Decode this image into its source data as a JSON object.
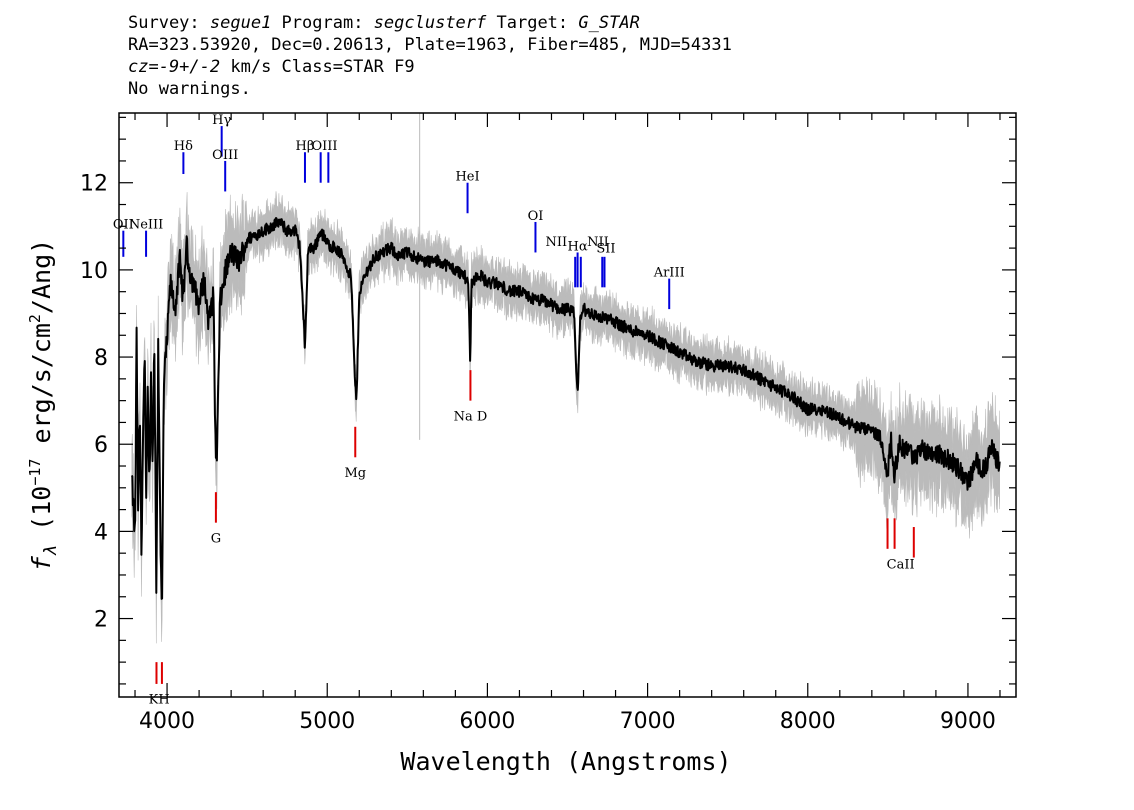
{
  "header": {
    "line1": {
      "survey_label": "Survey: ",
      "survey": "segue1",
      "program_label": " Program: ",
      "program": "segclusterf",
      "target_label": " Target: ",
      "target": "G_STAR"
    },
    "line2": "RA=323.53920, Dec=0.20613, Plate=1963, Fiber=485, MJD=54331",
    "line3": {
      "cz": "cz=-9+/-2",
      "rest": " km/s Class=STAR F9"
    },
    "line4": "No warnings."
  },
  "chart_data": {
    "type": "line",
    "xlabel": "Wavelength (Angstroms)",
    "ylabel": "f_λ (10^-17 erg/s/cm²/Ang)",
    "ylabel_parts": {
      "f": "f",
      "lambda": "λ",
      "pre": " (10",
      "exp": "−17",
      "mid": " erg/s/cm",
      "exp2": "2",
      "post": "/Ang)"
    },
    "xlim": [
      3700,
      9300
    ],
    "ylim": [
      0.2,
      13.6
    ],
    "xticks": [
      4000,
      5000,
      6000,
      7000,
      8000,
      9000
    ],
    "yticks": [
      2,
      4,
      6,
      8,
      10,
      12
    ],
    "spectrum_color": "#000000",
    "noise_color": "#bbbbbb",
    "series": [
      {
        "x": [
          3780,
          3800,
          3810,
          3820,
          3830,
          3840,
          3850,
          3860,
          3870,
          3880,
          3890,
          3900,
          3910,
          3920,
          3933,
          3945,
          3960,
          3968,
          3980,
          4000,
          4020,
          4050,
          4080,
          4101,
          4120,
          4140,
          4170,
          4200,
          4230,
          4260,
          4290,
          4300,
          4310,
          4330,
          4360,
          4400,
          4450,
          4500,
          4550,
          4600,
          4650,
          4700,
          4750,
          4800,
          4830,
          4861,
          4880,
          4920,
          4960,
          5000,
          5050,
          5100,
          5150,
          5172,
          5183,
          5200,
          5250,
          5300,
          5350,
          5400,
          5450,
          5500,
          5550,
          5600,
          5650,
          5700,
          5750,
          5800,
          5850,
          5880,
          5893,
          5900,
          5920,
          5950,
          6000,
          6050,
          6100,
          6150,
          6200,
          6250,
          6300,
          6350,
          6400,
          6450,
          6500,
          6540,
          6563,
          6580,
          6600,
          6650,
          6700,
          6750,
          6800,
          6850,
          6900,
          6950,
          7000,
          7100,
          7200,
          7300,
          7400,
          7500,
          7600,
          7700,
          7800,
          7900,
          8000,
          8100,
          8200,
          8300,
          8400,
          8450,
          8498,
          8520,
          8542,
          8570,
          8600,
          8640,
          8662,
          8700,
          8800,
          8900,
          8950,
          9000,
          9050,
          9100,
          9150,
          9200
        ],
        "y": [
          5.2,
          3.8,
          8.5,
          4.2,
          6.8,
          3.6,
          6.2,
          8.0,
          4.6,
          7.4,
          5.0,
          7.6,
          5.4,
          8.6,
          2.6,
          8.3,
          3.6,
          1.9,
          7.4,
          8.4,
          9.7,
          9.1,
          10.2,
          9.3,
          10.6,
          10.0,
          9.6,
          9.2,
          9.8,
          8.8,
          9.4,
          6.5,
          5.4,
          9.2,
          9.9,
          10.4,
          10.2,
          10.7,
          10.8,
          10.9,
          11.0,
          11.1,
          10.9,
          10.9,
          10.5,
          8.2,
          10.5,
          10.5,
          10.9,
          10.6,
          10.5,
          10.3,
          9.8,
          7.5,
          7.0,
          9.5,
          10.0,
          10.3,
          10.4,
          10.5,
          10.3,
          10.4,
          10.3,
          10.2,
          10.2,
          10.2,
          10.1,
          10.0,
          9.9,
          9.7,
          7.9,
          9.7,
          9.8,
          9.9,
          9.7,
          9.7,
          9.6,
          9.5,
          9.5,
          9.4,
          9.3,
          9.3,
          9.2,
          9.1,
          9.1,
          9.0,
          7.1,
          8.9,
          9.1,
          9.0,
          8.9,
          8.9,
          8.8,
          8.7,
          8.6,
          8.6,
          8.5,
          8.3,
          8.1,
          7.9,
          7.8,
          7.8,
          7.7,
          7.5,
          7.3,
          7.1,
          6.8,
          6.8,
          6.6,
          6.4,
          6.3,
          6.2,
          5.3,
          6.1,
          5.3,
          6.0,
          5.9,
          5.9,
          5.6,
          5.9,
          5.8,
          5.6,
          5.4,
          5.1,
          5.6,
          5.4,
          5.9,
          5.5
        ]
      }
    ],
    "lines": [
      {
        "label": "OII",
        "lambda": 3727,
        "color": "blue",
        "side": "up",
        "mark_top": 10.9,
        "mark_bottom": 10.3
      },
      {
        "label": "NeIII",
        "lambda": 3869,
        "color": "blue",
        "side": "up",
        "mark_top": 10.9,
        "mark_bottom": 10.3
      },
      {
        "label": "Hδ",
        "lambda": 4102,
        "color": "blue",
        "side": "up",
        "mark_top": 12.7,
        "mark_bottom": 12.2
      },
      {
        "label": "Hγ",
        "lambda": 4341,
        "color": "blue",
        "side": "up",
        "mark_top": 13.3,
        "mark_bottom": 12.6
      },
      {
        "label": "OIII",
        "lambda": 4363,
        "color": "blue",
        "side": "up",
        "mark_top": 12.5,
        "mark_bottom": 11.8
      },
      {
        "label": "Hβ",
        "lambda": 4861,
        "color": "blue",
        "side": "up",
        "mark_top": 12.7,
        "mark_bottom": 12.0
      },
      {
        "label": "OIII",
        "lambda": 4959,
        "color": "blue",
        "side": "up",
        "mark_top": 12.7,
        "mark_bottom": 12.0
      },
      {
        "label": "OIII",
        "lambda": 5007,
        "color": "blue",
        "side": "up",
        "mark_top": 12.7,
        "mark_bottom": 12.0
      },
      {
        "label": "HeI",
        "lambda": 5876,
        "color": "blue",
        "side": "up",
        "mark_top": 12.0,
        "mark_bottom": 11.3
      },
      {
        "label": "OI",
        "lambda": 6300,
        "color": "blue",
        "side": "up",
        "mark_top": 11.1,
        "mark_bottom": 10.4
      },
      {
        "label": "NII",
        "lambda": 6548,
        "color": "blue",
        "side": "up",
        "mark_top": 10.3,
        "mark_bottom": 9.6
      },
      {
        "label": "Hα",
        "lambda": 6563,
        "color": "blue",
        "side": "up",
        "mark_top": 10.4,
        "mark_bottom": 9.6
      },
      {
        "label": "NII",
        "lambda": 6583,
        "color": "blue",
        "side": "up",
        "mark_top": 10.3,
        "mark_bottom": 9.6
      },
      {
        "label": "SII",
        "lambda": 6717,
        "color": "blue",
        "side": "up",
        "mark_top": 10.3,
        "mark_bottom": 9.6
      },
      {
        "label": "SII",
        "lambda": 6731,
        "color": "blue",
        "side": "up",
        "mark_top": 10.3,
        "mark_bottom": 9.6
      },
      {
        "label": "ArIII",
        "lambda": 7135,
        "color": "blue",
        "side": "up",
        "mark_top": 9.8,
        "mark_bottom": 9.1
      },
      {
        "label": "K",
        "lambda": 3934,
        "color": "red",
        "side": "down",
        "mark_top": 1.0,
        "mark_bottom": 0.5
      },
      {
        "label": "H",
        "lambda": 3968,
        "color": "red",
        "side": "down",
        "mark_top": 1.0,
        "mark_bottom": 0.5
      },
      {
        "label": "G",
        "lambda": 4305,
        "color": "red",
        "side": "down",
        "mark_top": 4.9,
        "mark_bottom": 4.2
      },
      {
        "label": "Mg",
        "lambda": 5175,
        "color": "red",
        "side": "down",
        "mark_top": 6.4,
        "mark_bottom": 5.7
      },
      {
        "label": "Na D",
        "lambda": 5894,
        "color": "red",
        "side": "down",
        "mark_top": 7.7,
        "mark_bottom": 7.0
      },
      {
        "label": "CaII",
        "lambda": 8498,
        "color": "red",
        "side": "down",
        "mark_top": 4.3,
        "mark_bottom": 3.6
      },
      {
        "label": "CaII",
        "lambda": 8542,
        "color": "red",
        "side": "down",
        "mark_top": 4.3,
        "mark_bottom": 3.6
      },
      {
        "label": "CaII",
        "lambda": 8662,
        "color": "red",
        "side": "down",
        "mark_top": 4.1,
        "mark_bottom": 3.4
      }
    ],
    "line_label_texts": {
      "OII": "OII",
      "NeIII": "NeIII",
      "Hδ": "Hδ",
      "Hγ": "Hγ",
      "OIII": "OIII",
      "Hβ": "Hβ",
      "HeI": "HeI",
      "OI": "OI",
      "NII": "NII",
      "Hα": "Hα",
      "SII": "SII",
      "ArIII": "ArIII",
      "KH": "KH",
      "G": "G",
      "Mg": "Mg",
      "Na D": "Na D",
      "CaII": "CaII"
    },
    "line_label_positions": [
      {
        "text": "OII",
        "lambda": 3727,
        "at": 10.95
      },
      {
        "text": "NeIII",
        "lambda": 3869,
        "at": 10.95
      },
      {
        "text": "Hδ",
        "lambda": 4102,
        "at": 12.75
      },
      {
        "text": "Hγ",
        "lambda": 4341,
        "at": 13.35
      },
      {
        "text": "OIII",
        "lambda": 4363,
        "at": 12.55
      },
      {
        "text": "Hβ",
        "lambda": 4861,
        "at": 12.75
      },
      {
        "text": "OIII",
        "lambda": 4983,
        "at": 12.75
      },
      {
        "text": "HeI",
        "lambda": 5876,
        "at": 12.05
      },
      {
        "text": "OI",
        "lambda": 6300,
        "at": 11.15
      },
      {
        "text": "Hα",
        "lambda": 6563,
        "at": 10.45
      },
      {
        "text": "NII",
        "lambda": 6430,
        "at": 10.55
      },
      {
        "text": "NII",
        "lambda": 6690,
        "at": 10.55
      },
      {
        "text": "SII",
        "lambda": 6740,
        "at": 10.4
      },
      {
        "text": "ArIII",
        "lambda": 7135,
        "at": 9.85
      },
      {
        "text": "KH",
        "lambda": 3951,
        "at": 0.05
      },
      {
        "text": "G",
        "lambda": 4305,
        "at": 3.75
      },
      {
        "text": "Mg",
        "lambda": 5175,
        "at": 5.25
      },
      {
        "text": "Na D",
        "lambda": 5894,
        "at": 6.55
      },
      {
        "text": "CaII",
        "lambda": 8580,
        "at": 3.15
      }
    ]
  }
}
